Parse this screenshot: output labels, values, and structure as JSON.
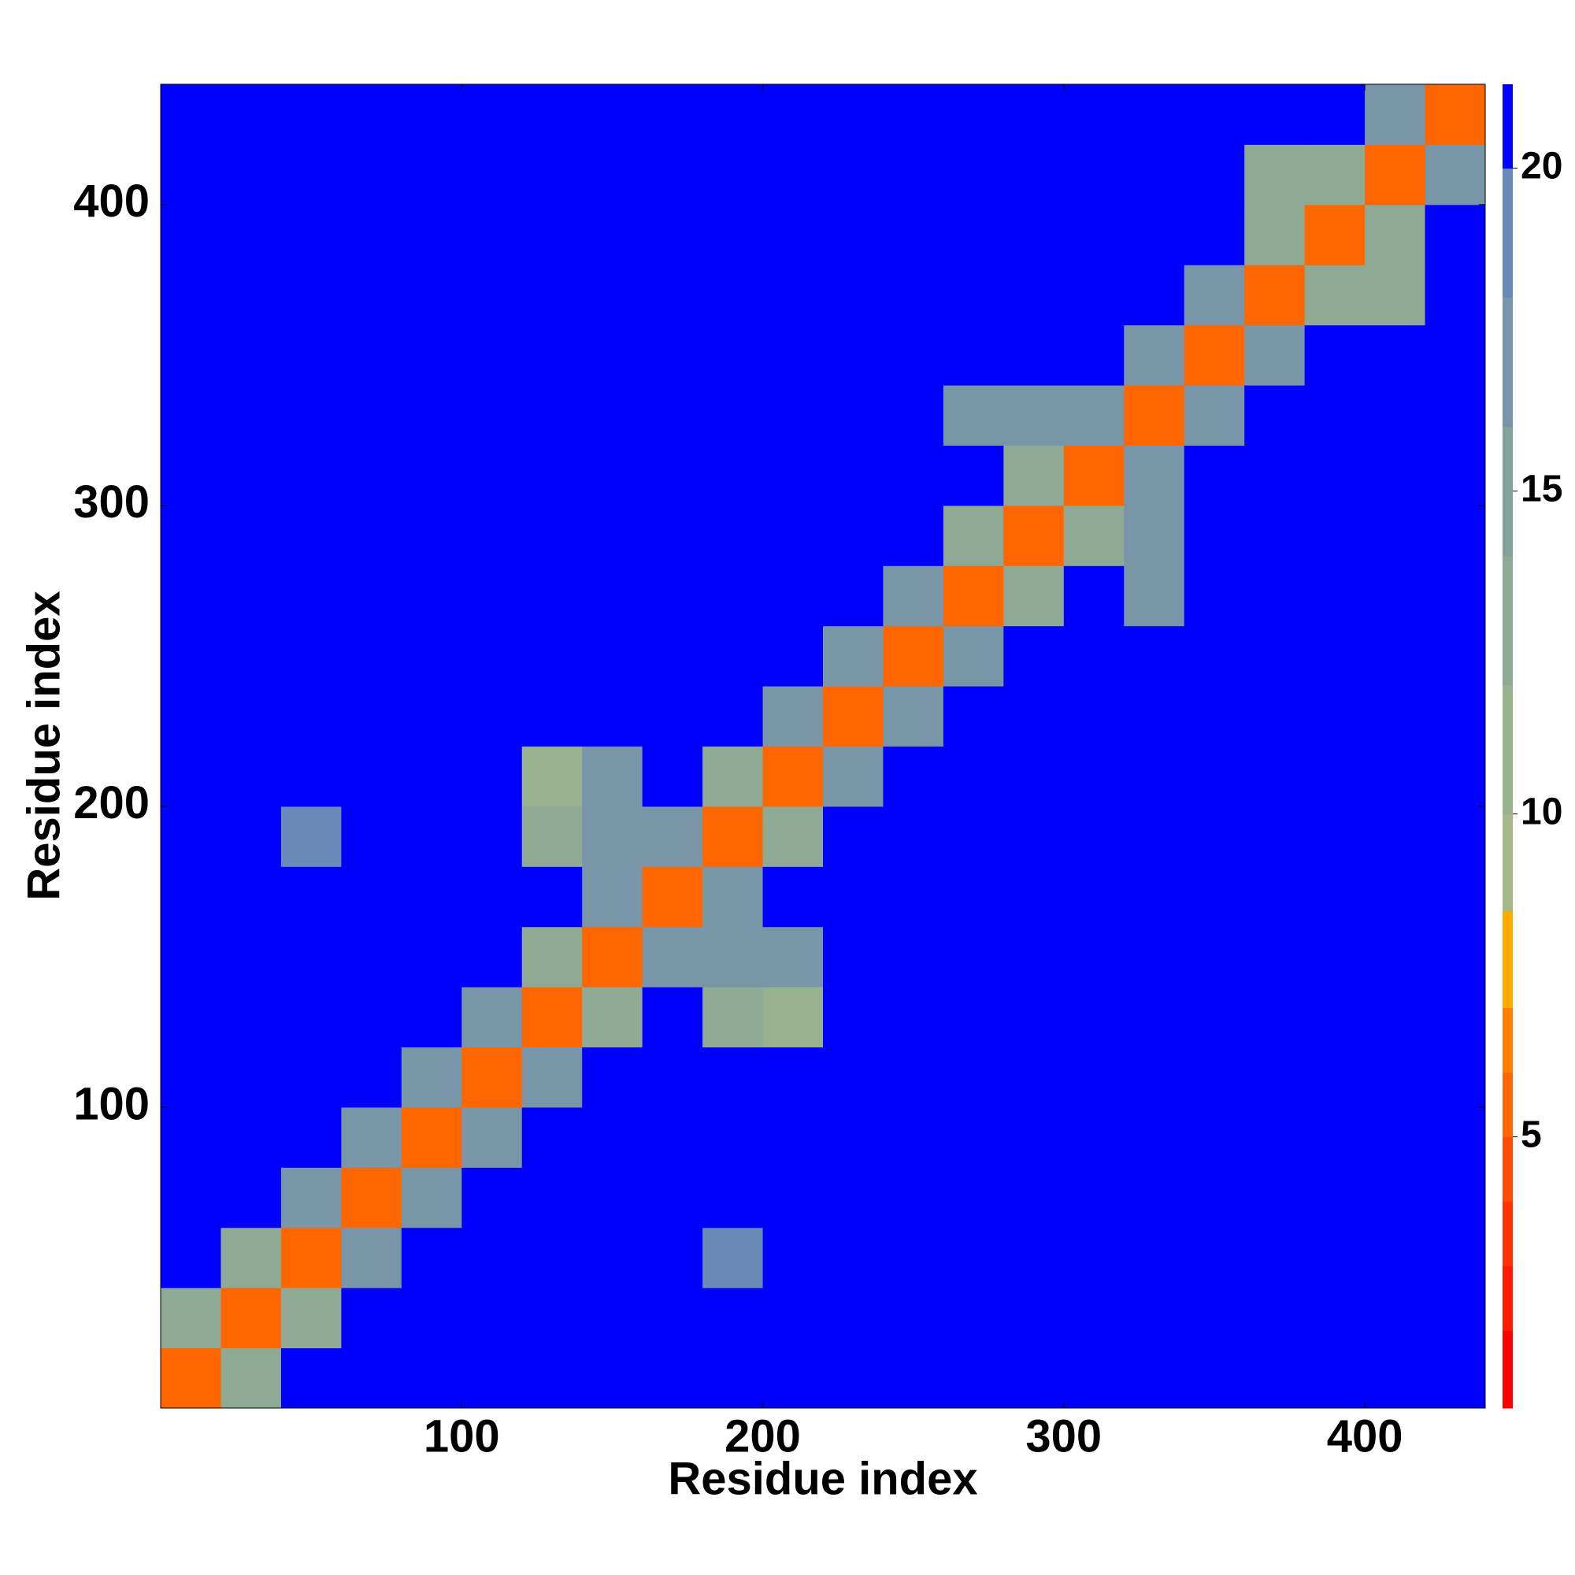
{
  "chart_data": {
    "type": "heatmap",
    "xlabel": "Residue index",
    "ylabel": "Residue index",
    "x_edges": [
      0,
      20,
      40,
      60,
      80,
      100,
      120,
      140,
      160,
      180,
      200,
      220,
      240,
      260,
      280,
      300,
      320,
      340,
      360,
      380,
      400,
      420,
      440
    ],
    "y_edges": [
      0,
      20,
      40,
      60,
      80,
      100,
      120,
      140,
      160,
      180,
      200,
      220,
      240,
      260,
      280,
      300,
      320,
      340,
      360,
      380,
      400,
      420,
      440
    ],
    "xlim": [
      0,
      440
    ],
    "ylim": [
      0,
      440
    ],
    "xticks": [
      100,
      200,
      300,
      400
    ],
    "yticks": [
      100,
      200,
      300,
      400
    ],
    "z": [
      [
        6,
        14,
        21,
        21,
        21,
        21,
        21,
        21,
        21,
        21,
        21,
        21,
        21,
        21,
        21,
        21,
        21,
        21,
        21,
        21,
        21,
        21
      ],
      [
        14,
        6,
        14,
        21,
        21,
        21,
        21,
        21,
        21,
        21,
        21,
        21,
        21,
        21,
        21,
        21,
        21,
        21,
        21,
        21,
        21,
        21
      ],
      [
        21,
        14,
        6,
        17,
        21,
        21,
        21,
        21,
        21,
        20,
        21,
        21,
        21,
        21,
        21,
        21,
        21,
        21,
        21,
        21,
        21,
        21
      ],
      [
        21,
        21,
        17,
        6,
        17,
        21,
        21,
        21,
        21,
        21,
        21,
        21,
        21,
        21,
        21,
        21,
        21,
        21,
        21,
        21,
        21,
        21
      ],
      [
        21,
        21,
        21,
        17,
        6,
        17,
        21,
        21,
        21,
        21,
        21,
        21,
        21,
        21,
        21,
        21,
        21,
        21,
        21,
        21,
        21,
        21
      ],
      [
        21,
        21,
        21,
        21,
        17,
        6,
        17,
        21,
        21,
        21,
        21,
        21,
        21,
        21,
        21,
        21,
        21,
        21,
        21,
        21,
        21,
        21
      ],
      [
        21,
        21,
        21,
        21,
        21,
        17,
        6,
        14,
        21,
        13,
        12,
        21,
        21,
        21,
        21,
        21,
        21,
        21,
        21,
        21,
        21,
        21
      ],
      [
        21,
        21,
        21,
        21,
        21,
        21,
        14,
        6,
        17,
        17,
        18,
        21,
        21,
        21,
        21,
        21,
        21,
        21,
        21,
        21,
        21,
        21
      ],
      [
        21,
        21,
        21,
        21,
        21,
        21,
        21,
        17,
        6,
        17,
        21,
        21,
        21,
        21,
        21,
        21,
        21,
        21,
        21,
        21,
        21,
        21
      ],
      [
        21,
        21,
        20,
        21,
        21,
        21,
        13,
        17,
        17,
        6,
        14,
        21,
        21,
        21,
        21,
        21,
        21,
        21,
        21,
        21,
        21,
        21
      ],
      [
        21,
        21,
        21,
        21,
        21,
        21,
        12,
        18,
        21,
        14,
        6,
        17,
        21,
        21,
        21,
        21,
        21,
        21,
        21,
        21,
        21,
        21
      ],
      [
        21,
        21,
        21,
        21,
        21,
        21,
        21,
        21,
        21,
        21,
        17,
        6,
        17,
        21,
        21,
        21,
        21,
        21,
        21,
        21,
        21,
        21
      ],
      [
        21,
        21,
        21,
        21,
        21,
        21,
        21,
        21,
        21,
        21,
        21,
        17,
        6,
        17,
        21,
        21,
        21,
        21,
        21,
        21,
        21,
        21
      ],
      [
        21,
        21,
        21,
        21,
        21,
        21,
        21,
        21,
        21,
        21,
        21,
        21,
        17,
        6,
        14,
        21,
        17,
        21,
        21,
        21,
        21,
        21
      ],
      [
        21,
        21,
        21,
        21,
        21,
        21,
        21,
        21,
        21,
        21,
        21,
        21,
        21,
        14,
        6,
        14,
        18,
        21,
        21,
        21,
        21,
        21
      ],
      [
        21,
        21,
        21,
        21,
        21,
        21,
        21,
        21,
        21,
        21,
        21,
        21,
        21,
        21,
        14,
        6,
        17,
        21,
        21,
        21,
        21,
        21
      ],
      [
        21,
        21,
        21,
        21,
        21,
        21,
        21,
        21,
        21,
        21,
        21,
        21,
        21,
        17,
        18,
        17,
        6,
        17,
        21,
        21,
        21,
        21
      ],
      [
        21,
        21,
        21,
        21,
        21,
        21,
        21,
        21,
        21,
        21,
        21,
        21,
        21,
        21,
        21,
        21,
        17,
        6,
        17,
        21,
        21,
        21
      ],
      [
        21,
        21,
        21,
        21,
        21,
        21,
        21,
        21,
        21,
        21,
        21,
        21,
        21,
        21,
        21,
        21,
        21,
        17,
        6,
        14,
        13,
        21
      ],
      [
        21,
        21,
        21,
        21,
        21,
        21,
        21,
        21,
        21,
        21,
        21,
        21,
        21,
        21,
        21,
        21,
        21,
        21,
        14,
        6,
        14,
        21
      ],
      [
        21,
        21,
        21,
        21,
        21,
        21,
        21,
        21,
        21,
        21,
        21,
        21,
        21,
        21,
        21,
        21,
        21,
        21,
        13,
        14,
        6,
        17
      ],
      [
        21,
        21,
        21,
        21,
        21,
        21,
        21,
        21,
        21,
        21,
        21,
        21,
        21,
        21,
        21,
        21,
        21,
        21,
        21,
        21,
        17,
        6
      ]
    ],
    "levels": [
      0.8,
      2,
      3,
      4,
      5,
      6,
      7,
      8.5,
      10,
      12,
      14,
      16,
      18,
      20,
      21.3
    ],
    "colors": [
      "#ff0000",
      "#ff1a00",
      "#ff3300",
      "#ff4d00",
      "#ff6600",
      "#ff8000",
      "#ffaa00",
      "#a4b88c",
      "#98b290",
      "#8eaa94",
      "#84a29a",
      "#7896a8",
      "#6a8ab8",
      "#0000ff"
    ],
    "cticks": [
      5,
      10,
      15,
      20
    ]
  }
}
